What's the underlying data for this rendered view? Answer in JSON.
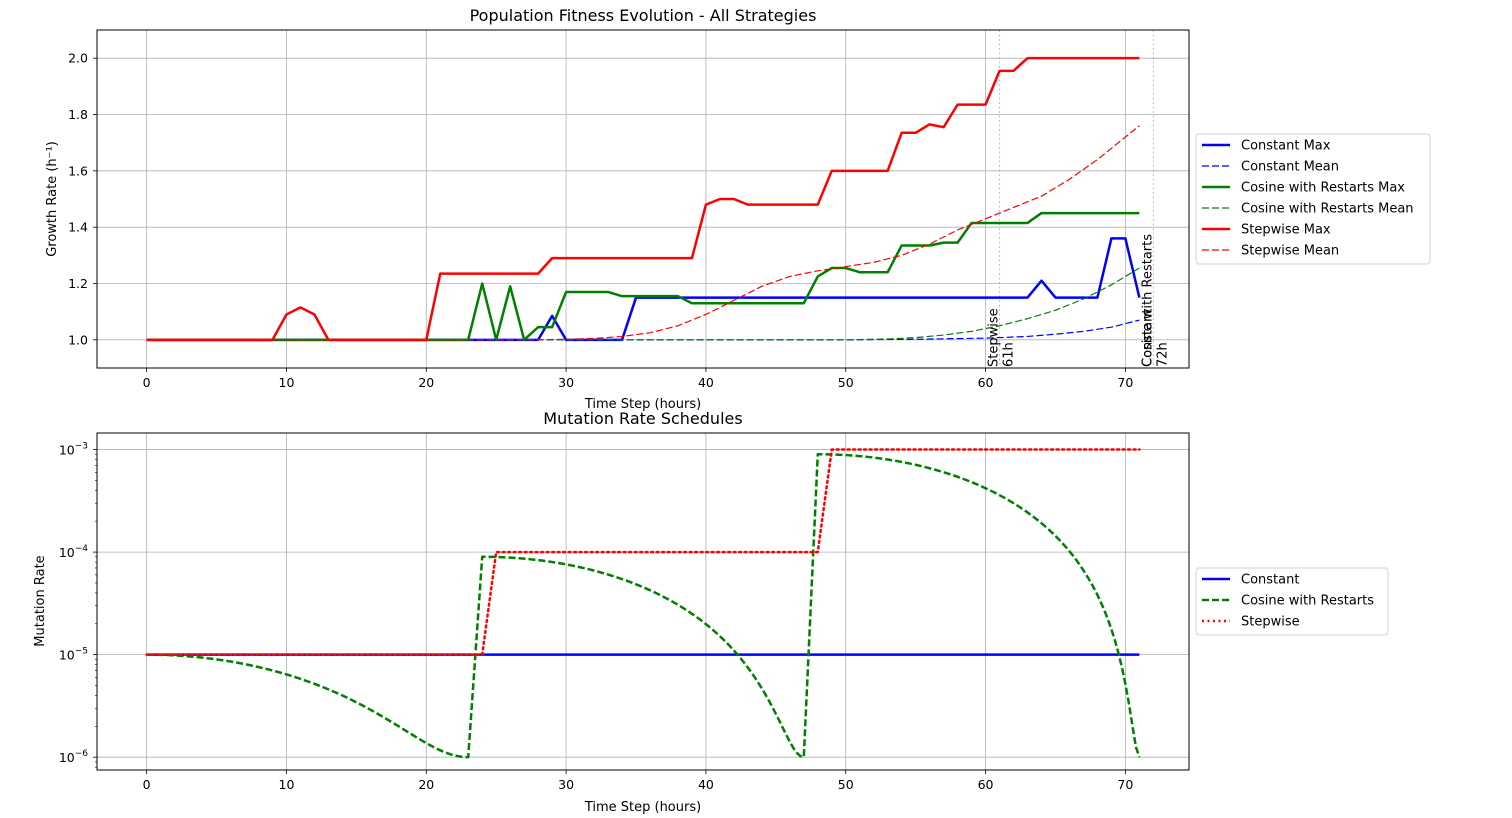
{
  "chart_data": [
    {
      "type": "line",
      "title": "Population Fitness Evolution - All Strategies",
      "xlabel": "Time Step (hours)",
      "ylabel": "Growth Rate (h⁻¹)",
      "xlim": [
        -3.55,
        74.55
      ],
      "ylim": [
        0.9,
        2.1
      ],
      "xticks": [
        0,
        10,
        20,
        30,
        40,
        50,
        60,
        70
      ],
      "yticks": [
        1.0,
        1.2,
        1.4,
        1.6,
        1.8,
        2.0
      ],
      "ytick_labels": [
        "1.0",
        "1.2",
        "1.4",
        "1.6",
        "1.8",
        "2.0"
      ],
      "grid": true,
      "legend_position": "outside-right",
      "series": [
        {
          "name": "Constant Max",
          "color": "#0000ff",
          "style": "solid",
          "width": 2.5,
          "points": [
            [
              0,
              1.0
            ],
            [
              28,
              1.0
            ],
            [
              29,
              1.085
            ],
            [
              30,
              1.0
            ],
            [
              34,
              1.0
            ],
            [
              35,
              1.15
            ],
            [
              63,
              1.15
            ],
            [
              64,
              1.21
            ],
            [
              65,
              1.15
            ],
            [
              68,
              1.15
            ],
            [
              69,
              1.36
            ],
            [
              70,
              1.36
            ],
            [
              71,
              1.15
            ]
          ]
        },
        {
          "name": "Constant Mean",
          "color": "#0000ff",
          "style": "dashed",
          "width": 1.2,
          "points": [
            [
              0,
              1.0
            ],
            [
              50,
              1.0
            ],
            [
              55,
              1.002
            ],
            [
              60,
              1.006
            ],
            [
              63,
              1.012
            ],
            [
              65,
              1.02
            ],
            [
              67,
              1.03
            ],
            [
              69,
              1.045
            ],
            [
              71,
              1.07
            ]
          ]
        },
        {
          "name": "Cosine with Restarts Max",
          "color": "#008000",
          "style": "solid",
          "width": 2.5,
          "points": [
            [
              0,
              1.0
            ],
            [
              23,
              1.0
            ],
            [
              24,
              1.2
            ],
            [
              25,
              1.0
            ],
            [
              26,
              1.19
            ],
            [
              27,
              1.0
            ],
            [
              28,
              1.045
            ],
            [
              29,
              1.045
            ],
            [
              30,
              1.17
            ],
            [
              33,
              1.17
            ],
            [
              34,
              1.155
            ],
            [
              38,
              1.155
            ],
            [
              39,
              1.13
            ],
            [
              47,
              1.13
            ],
            [
              48,
              1.225
            ],
            [
              49,
              1.255
            ],
            [
              50,
              1.255
            ],
            [
              51,
              1.24
            ],
            [
              53,
              1.24
            ],
            [
              54,
              1.335
            ],
            [
              56,
              1.335
            ],
            [
              57,
              1.345
            ],
            [
              58,
              1.345
            ],
            [
              59,
              1.415
            ],
            [
              63,
              1.415
            ],
            [
              64,
              1.45
            ],
            [
              71,
              1.45
            ]
          ]
        },
        {
          "name": "Cosine with Restarts Mean",
          "color": "#008000",
          "style": "dashed",
          "width": 1.2,
          "points": [
            [
              0,
              1.0
            ],
            [
              50,
              1.0
            ],
            [
              53,
              1.003
            ],
            [
              55,
              1.008
            ],
            [
              57,
              1.017
            ],
            [
              59,
              1.03
            ],
            [
              61,
              1.05
            ],
            [
              63,
              1.075
            ],
            [
              65,
              1.105
            ],
            [
              67,
              1.145
            ],
            [
              69,
              1.195
            ],
            [
              71,
              1.255
            ]
          ]
        },
        {
          "name": "Stepwise Max",
          "color": "#ff0000",
          "style": "solid",
          "width": 2.5,
          "points": [
            [
              0,
              1.0
            ],
            [
              9,
              1.0
            ],
            [
              10,
              1.09
            ],
            [
              11,
              1.115
            ],
            [
              12,
              1.09
            ],
            [
              13,
              1.0
            ],
            [
              20,
              1.0
            ],
            [
              21,
              1.235
            ],
            [
              28,
              1.235
            ],
            [
              29,
              1.29
            ],
            [
              39,
              1.29
            ],
            [
              40,
              1.48
            ],
            [
              41,
              1.5
            ],
            [
              42,
              1.5
            ],
            [
              43,
              1.48
            ],
            [
              48,
              1.48
            ],
            [
              49,
              1.6
            ],
            [
              53,
              1.6
            ],
            [
              54,
              1.735
            ],
            [
              55,
              1.735
            ],
            [
              56,
              1.765
            ],
            [
              57,
              1.755
            ],
            [
              58,
              1.835
            ],
            [
              60,
              1.835
            ],
            [
              61,
              1.955
            ],
            [
              62,
              1.955
            ],
            [
              63,
              2.0
            ],
            [
              71,
              2.0
            ]
          ]
        },
        {
          "name": "Stepwise Mean",
          "color": "#ff0000",
          "style": "dashed",
          "width": 1.2,
          "points": [
            [
              0,
              1.0
            ],
            [
              28,
              1.0
            ],
            [
              30,
              1.002
            ],
            [
              32,
              1.005
            ],
            [
              34,
              1.012
            ],
            [
              36,
              1.025
            ],
            [
              38,
              1.05
            ],
            [
              40,
              1.09
            ],
            [
              42,
              1.14
            ],
            [
              44,
              1.19
            ],
            [
              46,
              1.225
            ],
            [
              48,
              1.245
            ],
            [
              50,
              1.26
            ],
            [
              52,
              1.275
            ],
            [
              54,
              1.3
            ],
            [
              56,
              1.34
            ],
            [
              58,
              1.39
            ],
            [
              60,
              1.43
            ],
            [
              62,
              1.47
            ],
            [
              64,
              1.51
            ],
            [
              66,
              1.57
            ],
            [
              68,
              1.64
            ],
            [
              70,
              1.72
            ],
            [
              71,
              1.76
            ]
          ]
        }
      ],
      "vlines": [
        {
          "x": 61,
          "label_line1": "Stepwise",
          "label_line2": "61h"
        },
        {
          "x": 72,
          "label_line1": "Cosine with Restarts",
          "label_line2": "72h",
          "overlap_label": "Constant"
        }
      ]
    },
    {
      "type": "line",
      "title": "Mutation Rate Schedules",
      "xlabel": "Time Step (hours)",
      "ylabel": "Mutation Rate",
      "xlim": [
        -3.55,
        74.55
      ],
      "ylim": [
        7.5e-07,
        0.00145
      ],
      "yscale": "log",
      "xticks": [
        0,
        10,
        20,
        30,
        40,
        50,
        60,
        70
      ],
      "yticks": [
        1e-06,
        1e-05,
        0.0001,
        0.001
      ],
      "ytick_labels": [
        {
          "base": "10",
          "exp": "−6"
        },
        {
          "base": "10",
          "exp": "−5"
        },
        {
          "base": "10",
          "exp": "−4"
        },
        {
          "base": "10",
          "exp": "−3"
        }
      ],
      "grid": true,
      "legend_position": "outside-right",
      "series": [
        {
          "name": "Constant",
          "color": "#0000ff",
          "style": "solid",
          "width": 2.5,
          "points": [
            [
              0,
              1e-05
            ],
            [
              71,
              1e-05
            ]
          ]
        },
        {
          "name": "Cosine with Restarts",
          "color": "#008000",
          "style": "dashed",
          "width": 2.5,
          "generator": "cosine_restarts",
          "cycle_hours": 24,
          "eta_max_cycles": [
            1e-05,
            9e-05,
            0.0009
          ],
          "eta_min": 1e-06
        },
        {
          "name": "Stepwise",
          "color": "#ff0000",
          "style": "dotted",
          "width": 2.5,
          "points": [
            [
              0,
              1e-05
            ],
            [
              24,
              1e-05
            ],
            [
              25,
              0.0001
            ],
            [
              48,
              0.0001
            ],
            [
              49,
              0.001
            ],
            [
              71,
              0.001
            ]
          ]
        }
      ]
    }
  ]
}
